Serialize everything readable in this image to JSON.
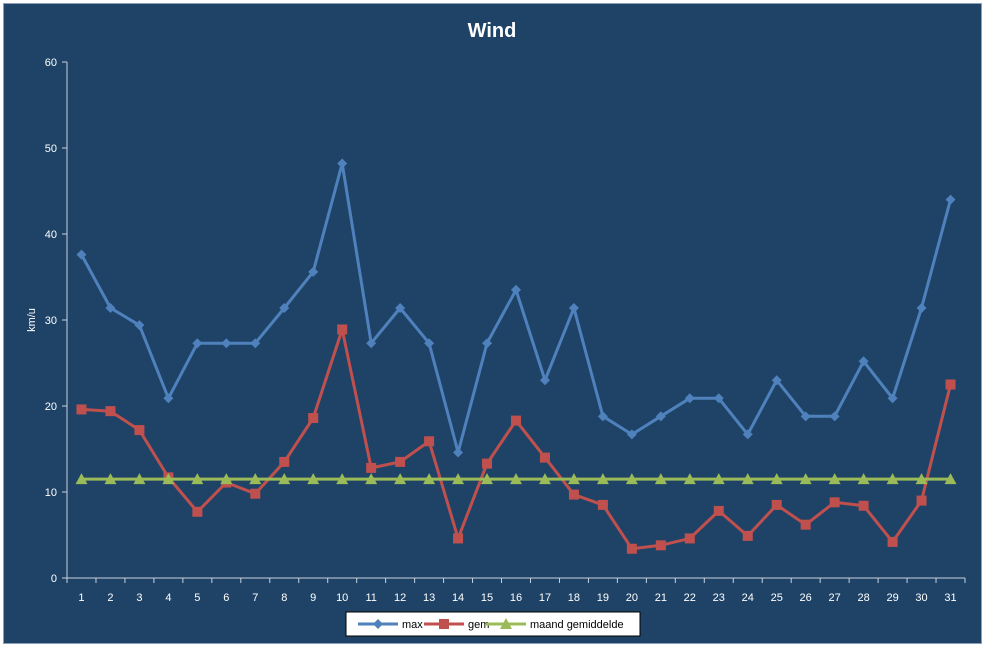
{
  "chart_data": {
    "type": "line",
    "title": "Wind",
    "xlabel": "",
    "ylabel": "km/u",
    "ylim": [
      0,
      60
    ],
    "yticks": [
      0,
      10,
      20,
      30,
      40,
      50,
      60
    ],
    "categories": [
      "1",
      "2",
      "3",
      "4",
      "5",
      "6",
      "7",
      "8",
      "9",
      "10",
      "11",
      "12",
      "13",
      "14",
      "15",
      "16",
      "17",
      "18",
      "19",
      "20",
      "21",
      "22",
      "23",
      "24",
      "25",
      "26",
      "27",
      "28",
      "29",
      "30",
      "31"
    ],
    "series": [
      {
        "name": "max",
        "color": "#4f81bd",
        "marker": "diamond",
        "values": [
          37.6,
          31.4,
          29.4,
          20.9,
          27.3,
          27.3,
          27.3,
          31.4,
          35.6,
          48.2,
          27.3,
          31.4,
          27.3,
          14.6,
          27.3,
          33.5,
          23.0,
          31.4,
          18.8,
          16.7,
          18.8,
          20.9,
          20.9,
          16.7,
          23.0,
          18.8,
          18.8,
          25.2,
          20.9,
          31.4,
          44.0
        ]
      },
      {
        "name": "gem",
        "color": "#c0504d",
        "marker": "square",
        "values": [
          19.6,
          19.4,
          17.2,
          11.7,
          7.7,
          11.1,
          9.8,
          13.5,
          18.6,
          28.9,
          12.8,
          13.5,
          15.9,
          4.6,
          13.3,
          18.3,
          14.0,
          9.7,
          8.5,
          3.4,
          3.8,
          4.6,
          7.8,
          4.9,
          8.5,
          6.2,
          8.8,
          8.4,
          4.2,
          9.0,
          22.5
        ]
      },
      {
        "name": "maand gemiddelde",
        "color": "#9bbb59",
        "marker": "triangle",
        "values": [
          11.5,
          11.5,
          11.5,
          11.5,
          11.5,
          11.5,
          11.5,
          11.5,
          11.5,
          11.5,
          11.5,
          11.5,
          11.5,
          11.5,
          11.5,
          11.5,
          11.5,
          11.5,
          11.5,
          11.5,
          11.5,
          11.5,
          11.5,
          11.5,
          11.5,
          11.5,
          11.5,
          11.5,
          11.5,
          11.5,
          11.5
        ]
      }
    ],
    "grid": false,
    "legend_position": "bottom",
    "colors": {
      "background": "#1f4367",
      "axis": "#c8d2de",
      "text": "#ffffff",
      "legend_bg": "#ffffff"
    }
  }
}
